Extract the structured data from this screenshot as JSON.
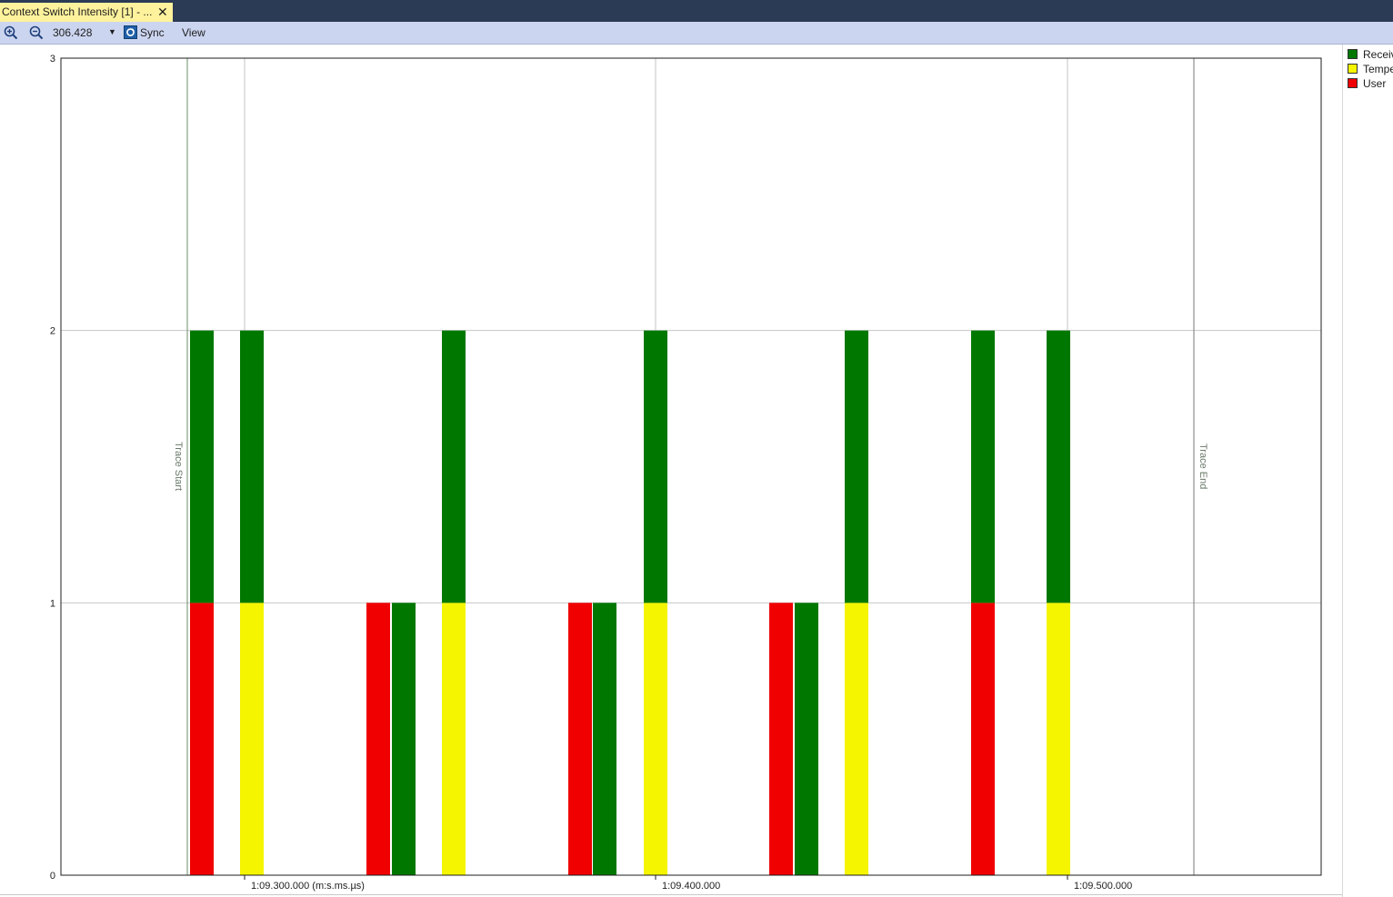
{
  "tab": {
    "title": "Context Switch Intensity [1] - ...",
    "close": "✕"
  },
  "toolbar": {
    "zoom_in_icon": "zoom-in-icon",
    "zoom_out_icon": "zoom-out-icon",
    "zoom_value": "306.428",
    "sync_label": "Sync",
    "view_label": "View"
  },
  "markers": {
    "start": "Trace Start",
    "end": "Trace End"
  },
  "legend": [
    {
      "label": "Receiv",
      "color": "#007800"
    },
    {
      "label": "Tempe",
      "color": "#f5f500"
    },
    {
      "label": "User",
      "color": "#f00000"
    }
  ],
  "chart_data": {
    "type": "bar",
    "stacked": true,
    "grid": true,
    "ylim": [
      0,
      3
    ],
    "yticks": [
      "0",
      "1",
      "2",
      "3"
    ],
    "xticks": [
      "1:09.300.000 (m:s.ms.µs)",
      "1:09.400.000",
      "1:09.500.000"
    ],
    "series": [
      {
        "name": "Receiv",
        "color": "#007800"
      },
      {
        "name": "Tempe",
        "color": "#f5f500"
      },
      {
        "name": "User",
        "color": "#f00000"
      }
    ],
    "bars": [
      {
        "segments": [
          {
            "series": "User",
            "value": 1
          },
          {
            "series": "Receiv",
            "value": 1
          }
        ]
      },
      {
        "segments": [
          {
            "series": "Tempe",
            "value": 1
          },
          {
            "series": "Receiv",
            "value": 1
          }
        ]
      },
      {
        "segments": [
          {
            "series": "User",
            "value": 1
          }
        ]
      },
      {
        "segments": [
          {
            "series": "Receiv",
            "value": 1
          }
        ]
      },
      {
        "segments": [
          {
            "series": "Tempe",
            "value": 1
          },
          {
            "series": "Receiv",
            "value": 1
          }
        ]
      },
      {
        "segments": [
          {
            "series": "User",
            "value": 1
          }
        ]
      },
      {
        "segments": [
          {
            "series": "Receiv",
            "value": 1
          }
        ]
      },
      {
        "segments": [
          {
            "series": "Tempe",
            "value": 1
          },
          {
            "series": "Receiv",
            "value": 1
          }
        ]
      },
      {
        "segments": [
          {
            "series": "User",
            "value": 1
          }
        ]
      },
      {
        "segments": [
          {
            "series": "Receiv",
            "value": 1
          }
        ]
      },
      {
        "segments": [
          {
            "series": "Tempe",
            "value": 1
          },
          {
            "series": "Receiv",
            "value": 1
          }
        ]
      },
      {
        "segments": [
          {
            "series": "User",
            "value": 1
          },
          {
            "series": "Receiv",
            "value": 1
          }
        ]
      },
      {
        "segments": [
          {
            "series": "Tempe",
            "value": 1
          },
          {
            "series": "Receiv",
            "value": 1
          }
        ]
      }
    ]
  }
}
